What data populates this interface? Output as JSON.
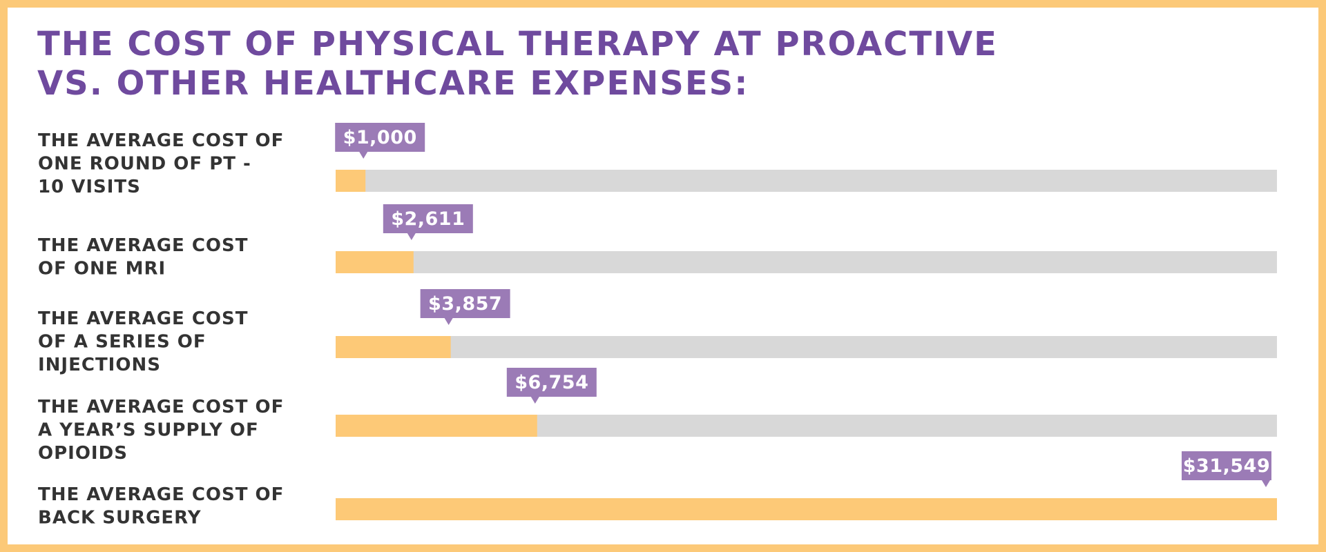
{
  "title": "THE COST OF PHYSICAL THERAPY AT PROACTIVE\nVS. OTHER HEALTHCARE EXPENSES:",
  "colors": {
    "border": "#fcc978",
    "title": "#6f4a9e",
    "bar_fill": "#fdc977",
    "bar_track": "#d8d8d8",
    "callout": "#9b7bb6",
    "label_text": "#333333"
  },
  "chart_data": {
    "type": "bar",
    "orientation": "horizontal",
    "categories": [
      [
        "THE AVERAGE COST OF",
        "ONE ROUND OF PT -",
        "10 VISITS"
      ],
      [
        "THE AVERAGE COST",
        "OF ONE MRI"
      ],
      [
        "THE AVERAGE COST",
        "OF A SERIES OF",
        "INJECTIONS"
      ],
      [
        "THE AVERAGE COST OF",
        "A YEAR’S SUPPLY OF",
        "OPIOIDS"
      ],
      [
        "THE AVERAGE COST OF",
        "BACK SURGERY"
      ]
    ],
    "values": [
      1000,
      2611,
      3857,
      6754,
      31549
    ],
    "value_labels": [
      "$1,000",
      "$2,611",
      "$3,857",
      "$6,754",
      "$31,549"
    ],
    "xlim": [
      0,
      31549
    ],
    "grid": false,
    "legend": "none"
  }
}
